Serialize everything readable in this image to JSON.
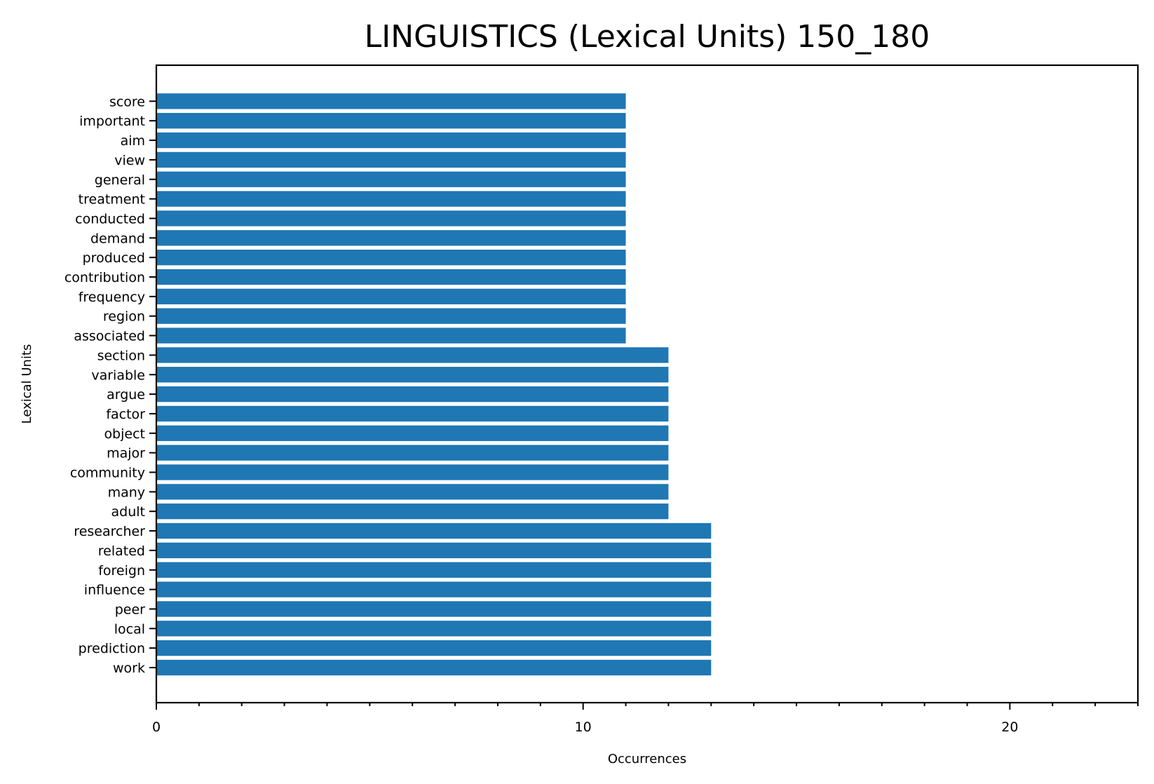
{
  "chart_data": {
    "type": "bar",
    "orientation": "horizontal",
    "title": "LINGUISTICS (Lexical Units) 150_180",
    "xlabel": "Occurrences",
    "ylabel": "Lexical Units",
    "xlim": [
      0,
      23
    ],
    "x_ticks": [
      0,
      10,
      20
    ],
    "x_tick_labels": [
      "0",
      "10",
      "20"
    ],
    "x_minor_tick_step": 1,
    "grid": false,
    "legend": "none",
    "bar_color": "#1f77b4",
    "categories": [
      "work",
      "prediction",
      "local",
      "peer",
      "influence",
      "foreign",
      "related",
      "researcher",
      "adult",
      "many",
      "community",
      "major",
      "object",
      "factor",
      "argue",
      "variable",
      "section",
      "associated",
      "region",
      "frequency",
      "contribution",
      "produced",
      "demand",
      "conducted",
      "treatment",
      "general",
      "view",
      "aim",
      "important",
      "score"
    ],
    "values": [
      13,
      13,
      13,
      13,
      13,
      13,
      13,
      13,
      12,
      12,
      12,
      12,
      12,
      12,
      12,
      12,
      12,
      11,
      11,
      11,
      11,
      11,
      11,
      11,
      11,
      11,
      11,
      11,
      11,
      11
    ]
  }
}
